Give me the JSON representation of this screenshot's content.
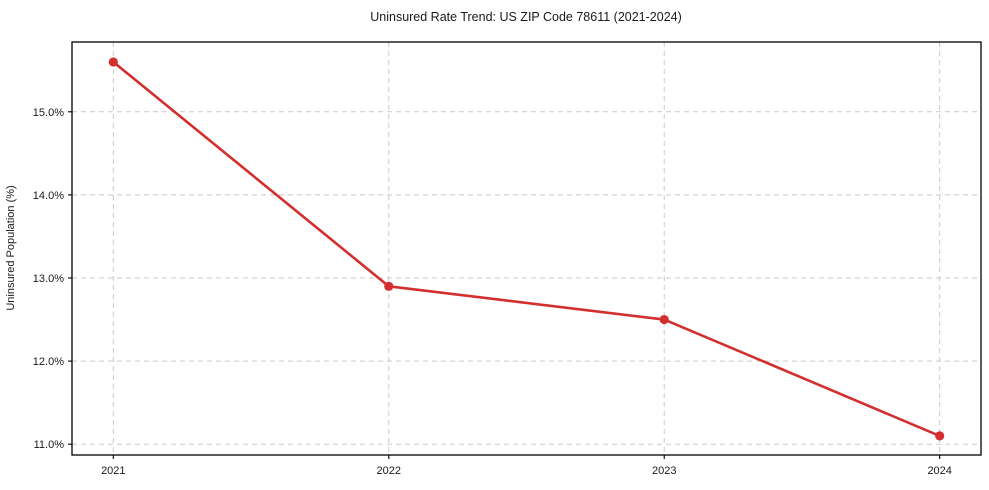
{
  "chart_data": {
    "type": "line",
    "title": "Uninsured Rate Trend: US ZIP Code 78611 (2021-2024)",
    "xlabel": "",
    "ylabel": "Uninsured Population (%)",
    "x": [
      2021,
      2022,
      2023,
      2024
    ],
    "values": [
      15.6,
      12.9,
      12.5,
      11.1
    ],
    "x_tick_labels": [
      "2021",
      "2022",
      "2023",
      "2024"
    ],
    "y_ticks": [
      11.0,
      12.0,
      13.0,
      14.0,
      15.0
    ],
    "y_tick_labels": [
      "11.0%",
      "12.0%",
      "13.0%",
      "14.0%",
      "15.0%"
    ],
    "xlim": [
      2020.85,
      2024.15
    ],
    "ylim": [
      10.87,
      15.84
    ],
    "grid": true,
    "grid_style": "dashed",
    "legend_position": "none",
    "line_color": "#d32f2f",
    "grid_color": "#c9c9c9",
    "axis_color": "#000000",
    "marker": "circle"
  }
}
